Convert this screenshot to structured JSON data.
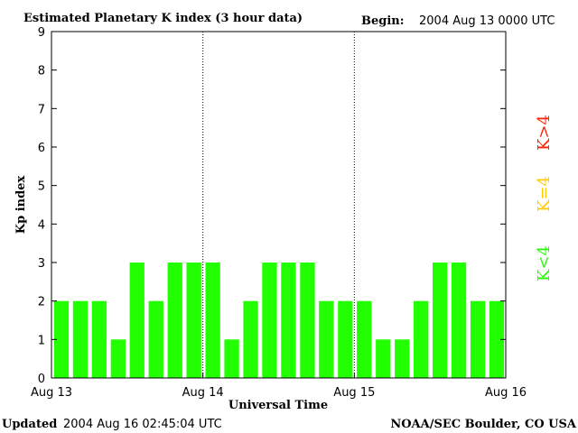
{
  "chart_data": {
    "type": "bar",
    "title": "Estimated Planetary K index (3 hour data)",
    "begin_label": "Begin:",
    "begin_value": "2004 Aug 13 0000 UTC",
    "xlabel": "Universal Time",
    "ylabel": "Kp index",
    "ylim": [
      0,
      9
    ],
    "yticks": [
      "0",
      "1",
      "2",
      "3",
      "4",
      "5",
      "6",
      "7",
      "8",
      "9"
    ],
    "xticks": [
      {
        "label": "Aug 13",
        "day": 0
      },
      {
        "label": "Aug 14",
        "day": 1
      },
      {
        "label": "Aug 15",
        "day": 2
      },
      {
        "label": "Aug 16",
        "day": 3
      }
    ],
    "day_separators": [
      1,
      2
    ],
    "values": [
      2,
      2,
      2,
      1,
      3,
      2,
      3,
      3,
      3,
      1,
      2,
      3,
      3,
      3,
      2,
      2,
      2,
      1,
      1,
      2,
      3,
      3,
      2,
      2
    ],
    "colors": {
      "low": "#22ff00",
      "mid": "#ffcc00",
      "high": "#ff2200"
    },
    "legend": [
      {
        "label": "K<4",
        "color": "#22ff00"
      },
      {
        "label": "K=4",
        "color": "#ffcc00"
      },
      {
        "label": "K>4",
        "color": "#ff2200"
      }
    ],
    "grid": false
  },
  "footer": {
    "updated_label": "Updated",
    "updated_value": "2004 Aug 16 02:45:04 UTC",
    "source": "NOAA/SEC Boulder, CO USA"
  }
}
